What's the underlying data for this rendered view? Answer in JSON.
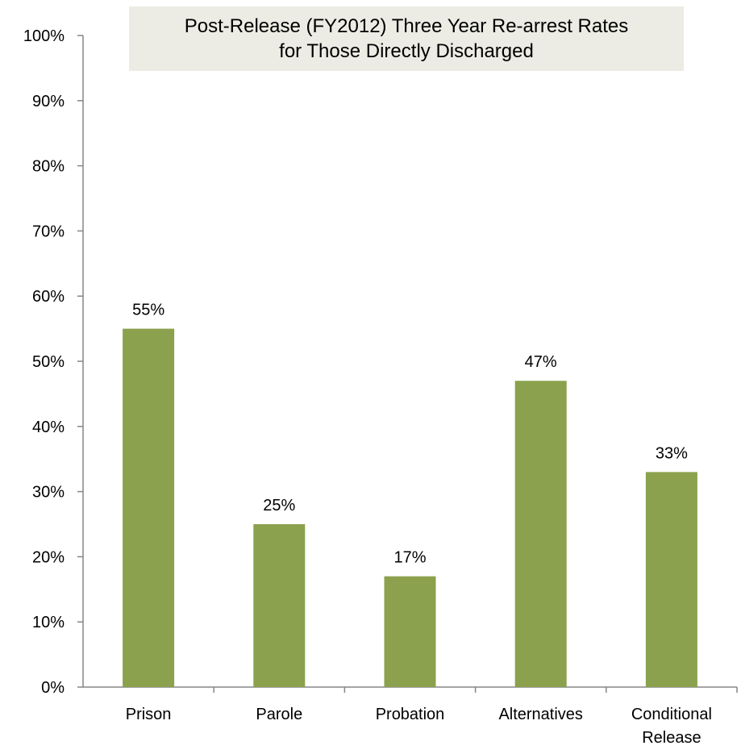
{
  "chart_data": {
    "type": "bar",
    "title_lines": [
      "Post-Release (FY2012) Three Year Re-arrest Rates",
      "for Those Directly Discharged"
    ],
    "categories": [
      [
        "Prison"
      ],
      [
        "Parole"
      ],
      [
        "Probation"
      ],
      [
        "Alternatives"
      ],
      [
        "Conditional",
        "Release"
      ]
    ],
    "values": [
      55,
      25,
      17,
      47,
      33
    ],
    "data_labels": [
      "55%",
      "25%",
      "17%",
      "47%",
      "33%"
    ],
    "y_ticks": [
      0,
      10,
      20,
      30,
      40,
      50,
      60,
      70,
      80,
      90,
      100
    ],
    "y_tick_labels": [
      "0%",
      "10%",
      "20%",
      "30%",
      "40%",
      "50%",
      "60%",
      "70%",
      "80%",
      "90%",
      "100%"
    ],
    "ylim": [
      0,
      100
    ],
    "xlabel": "",
    "ylabel": "",
    "grid": false,
    "legend": "none",
    "bar_color": "#8ba14d",
    "axis_color": "#868686",
    "title_background": "#ecece4"
  }
}
